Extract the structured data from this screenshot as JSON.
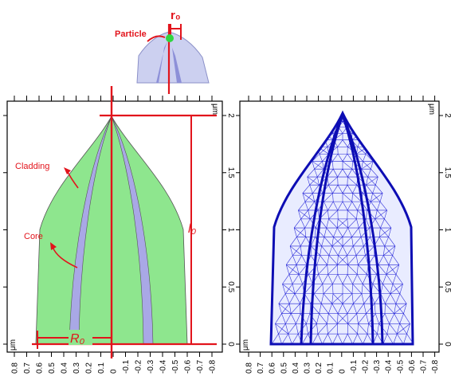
{
  "annotations": {
    "r0": "r₀",
    "particle": "Particle",
    "cladding": "Cladding",
    "core": "Core",
    "l0": "l₀",
    "R0": "R₀"
  },
  "axes": {
    "unit": "μm",
    "y_ticks": [
      "2",
      "1.5",
      "1",
      "0.5",
      "0"
    ],
    "x_ticks": [
      "0.8",
      "0.7",
      "0.6",
      "0.5",
      "0.4",
      "0.3",
      "0.2",
      "0.1",
      "0",
      "-0.1",
      "-0.2",
      "-0.3",
      "-0.4",
      "-0.5",
      "-0.6",
      "-0.7",
      "-0.8"
    ]
  },
  "colors": {
    "cladding_fill": "#8ee68e",
    "core_fill": "#a9a8e6",
    "annotation": "#e2141c",
    "mesh": "#1f1fd6",
    "mesh_dark": "#0d0db4",
    "inset_fill": "#ccd0f0",
    "particle": "#2ed640"
  }
}
